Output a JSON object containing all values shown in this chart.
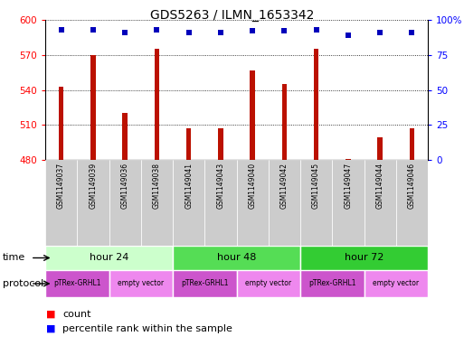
{
  "title": "GDS5263 / ILMN_1653342",
  "samples": [
    "GSM1149037",
    "GSM1149039",
    "GSM1149036",
    "GSM1149038",
    "GSM1149041",
    "GSM1149043",
    "GSM1149040",
    "GSM1149042",
    "GSM1149045",
    "GSM1149047",
    "GSM1149044",
    "GSM1149046"
  ],
  "counts": [
    543,
    570,
    520,
    575,
    507,
    507,
    557,
    545,
    575,
    481,
    499,
    507
  ],
  "percentile_ranks": [
    93,
    93,
    91,
    93,
    91,
    91,
    92,
    92,
    93,
    89,
    91,
    91
  ],
  "ylim_left": [
    480,
    600
  ],
  "ylim_right": [
    0,
    100
  ],
  "yticks_left": [
    480,
    510,
    540,
    570,
    600
  ],
  "yticks_right": [
    0,
    25,
    50,
    75,
    100
  ],
  "bar_color": "#bb1100",
  "dot_color": "#0000bb",
  "time_groups": [
    {
      "label": "hour 24",
      "start": 0,
      "end": 4,
      "color": "#ccffcc"
    },
    {
      "label": "hour 48",
      "start": 4,
      "end": 8,
      "color": "#55dd55"
    },
    {
      "label": "hour 72",
      "start": 8,
      "end": 12,
      "color": "#33cc33"
    }
  ],
  "protocol_groups": [
    {
      "label": "pTRex-GRHL1",
      "start": 0,
      "end": 2,
      "color": "#cc55cc"
    },
    {
      "label": "empty vector",
      "start": 2,
      "end": 4,
      "color": "#ee88ee"
    },
    {
      "label": "pTRex-GRHL1",
      "start": 4,
      "end": 6,
      "color": "#cc55cc"
    },
    {
      "label": "empty vector",
      "start": 6,
      "end": 8,
      "color": "#ee88ee"
    },
    {
      "label": "pTRex-GRHL1",
      "start": 8,
      "end": 10,
      "color": "#cc55cc"
    },
    {
      "label": "empty vector",
      "start": 10,
      "end": 12,
      "color": "#ee88ee"
    }
  ],
  "time_label": "time",
  "protocol_label": "protocol",
  "legend_count_label": "count",
  "legend_percentile_label": "percentile rank within the sample",
  "background_color": "#ffffff",
  "plot_bg_color": "#ffffff",
  "sample_label_bg": "#cccccc",
  "grid_color": "#000000"
}
